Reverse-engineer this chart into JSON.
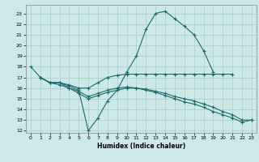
{
  "title": "",
  "xlabel": "Humidex (Indice chaleur)",
  "bg_color": "#cce8e8",
  "grid_color": "#aacccc",
  "line_color": "#1a6b6b",
  "xlim": [
    -0.5,
    23.5
  ],
  "ylim": [
    11.8,
    23.8
  ],
  "yticks": [
    12,
    13,
    14,
    15,
    16,
    17,
    18,
    19,
    20,
    21,
    22,
    23
  ],
  "xticks": [
    0,
    1,
    2,
    3,
    4,
    5,
    6,
    7,
    8,
    9,
    10,
    11,
    12,
    13,
    14,
    15,
    16,
    17,
    18,
    19,
    20,
    21,
    22,
    23
  ],
  "lines": [
    {
      "x": [
        0,
        1,
        2,
        3,
        4,
        5,
        6,
        7,
        8,
        9,
        10,
        11,
        12,
        13,
        14,
        15,
        16,
        17,
        18,
        19
      ],
      "y": [
        18.0,
        17.0,
        16.5,
        16.5,
        16.2,
        15.8,
        12.0,
        13.2,
        14.8,
        15.8,
        17.5,
        19.0,
        21.5,
        23.0,
        23.2,
        22.5,
        21.8,
        21.0,
        19.5,
        17.5
      ]
    },
    {
      "x": [
        1,
        2,
        3,
        4,
        5,
        6,
        7,
        8,
        9,
        10,
        11,
        12,
        13,
        14,
        15,
        16,
        17,
        18,
        19,
        20,
        21
      ],
      "y": [
        17.0,
        16.5,
        16.5,
        16.3,
        16.0,
        16.0,
        16.5,
        17.0,
        17.2,
        17.3,
        17.3,
        17.3,
        17.3,
        17.3,
        17.3,
        17.3,
        17.3,
        17.3,
        17.3,
        17.3,
        17.3
      ]
    },
    {
      "x": [
        1,
        2,
        3,
        4,
        5,
        6,
        7,
        8,
        9,
        10,
        11,
        12,
        13,
        14,
        15,
        16,
        17,
        18,
        19,
        20,
        21,
        22,
        23
      ],
      "y": [
        17.0,
        16.5,
        16.5,
        16.0,
        15.7,
        15.2,
        15.5,
        15.8,
        16.0,
        16.1,
        16.0,
        15.9,
        15.7,
        15.5,
        15.2,
        15.0,
        14.8,
        14.5,
        14.2,
        13.8,
        13.5,
        13.0,
        13.0
      ]
    },
    {
      "x": [
        1,
        2,
        3,
        4,
        5,
        6,
        7,
        8,
        9,
        10,
        11,
        12,
        13,
        14,
        15,
        16,
        17,
        18,
        19,
        20,
        21,
        22,
        23
      ],
      "y": [
        17.0,
        16.5,
        16.3,
        16.0,
        15.5,
        15.0,
        15.3,
        15.6,
        15.8,
        16.0,
        16.0,
        15.8,
        15.6,
        15.3,
        15.0,
        14.7,
        14.5,
        14.2,
        13.8,
        13.5,
        13.2,
        12.8,
        13.0
      ]
    }
  ]
}
